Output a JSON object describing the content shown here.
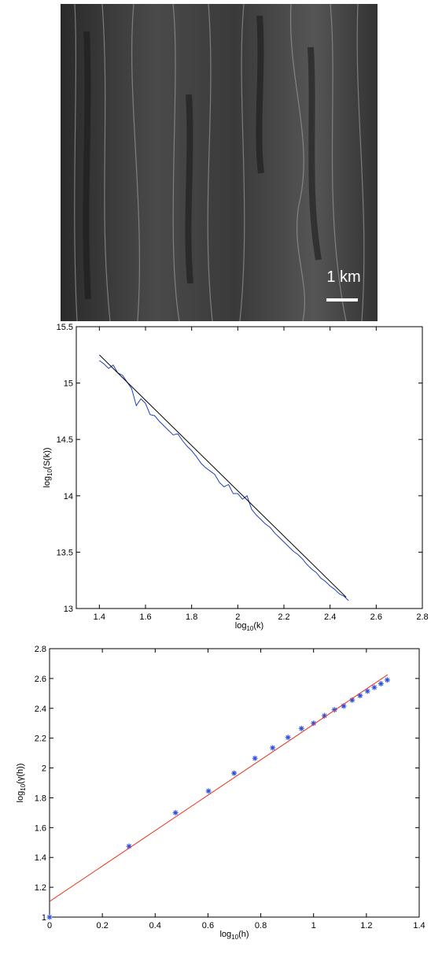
{
  "image": {
    "scale_label": "1 km"
  },
  "chart_data": [
    {
      "type": "line",
      "xlabel": [
        "log",
        "10",
        "(k)"
      ],
      "ylabel": [
        "log",
        "10",
        "(S(k))"
      ],
      "xlim": [
        1.3,
        2.8
      ],
      "xticks": [
        1.4,
        1.6,
        1.8,
        2,
        2.2,
        2.4,
        2.6,
        2.8
      ],
      "ylim": [
        13,
        15.5
      ],
      "yticks": [
        13,
        13.5,
        14,
        14.5,
        15,
        15.5
      ],
      "series": [
        {
          "mode": "lines",
          "color": "#1f3fbf",
          "x": [
            1.4,
            1.42,
            1.44,
            1.46,
            1.48,
            1.5,
            1.52,
            1.54,
            1.56,
            1.58,
            1.6,
            1.62,
            1.64,
            1.66,
            1.68,
            1.7,
            1.72,
            1.74,
            1.76,
            1.78,
            1.8,
            1.82,
            1.84,
            1.86,
            1.88,
            1.9,
            1.92,
            1.94,
            1.96,
            1.98,
            2.0,
            2.02,
            2.04,
            2.06,
            2.08,
            2.1,
            2.12,
            2.14,
            2.16,
            2.18,
            2.2,
            2.22,
            2.24,
            2.26,
            2.28,
            2.3,
            2.32,
            2.34,
            2.36,
            2.38,
            2.4,
            2.42,
            2.44,
            2.46,
            2.48
          ],
          "values": [
            15.2,
            15.17,
            15.13,
            15.16,
            15.09,
            15.07,
            15.01,
            14.95,
            14.8,
            14.86,
            14.82,
            14.72,
            14.71,
            14.66,
            14.62,
            14.58,
            14.54,
            14.55,
            14.49,
            14.44,
            14.4,
            14.35,
            14.29,
            14.25,
            14.22,
            14.19,
            14.12,
            14.08,
            14.1,
            14.02,
            14.02,
            13.97,
            14.0,
            13.88,
            13.83,
            13.79,
            13.75,
            13.72,
            13.67,
            13.63,
            13.59,
            13.55,
            13.51,
            13.48,
            13.44,
            13.39,
            13.35,
            13.32,
            13.27,
            13.24,
            13.2,
            13.17,
            13.13,
            13.11,
            13.07
          ]
        },
        {
          "mode": "lines",
          "color": "#000000",
          "x": [
            1.4,
            2.47
          ],
          "values": [
            15.25,
            13.1
          ]
        }
      ]
    },
    {
      "type": "scatter",
      "xlabel": [
        "log",
        "10",
        "(h)"
      ],
      "ylabel": [
        "log",
        "10",
        "(γ(h))"
      ],
      "xlim": [
        0,
        1.4
      ],
      "xticks": [
        0,
        0.2,
        0.4,
        0.6,
        0.8,
        1,
        1.2,
        1.4
      ],
      "ylim": [
        1,
        2.8
      ],
      "yticks": [
        1,
        1.2,
        1.4,
        1.6,
        1.8,
        2,
        2.2,
        2.4,
        2.6,
        2.8
      ],
      "series": [
        {
          "mode": "markers",
          "color": "#2a4fe0",
          "x": [
            0,
            0.301,
            0.477,
            0.602,
            0.699,
            0.778,
            0.845,
            0.903,
            0.954,
            1.0,
            1.041,
            1.079,
            1.114,
            1.146,
            1.176,
            1.204,
            1.23,
            1.255,
            1.279
          ],
          "values": [
            1.0,
            1.475,
            1.7,
            1.845,
            1.965,
            2.065,
            2.135,
            2.205,
            2.265,
            2.3,
            2.35,
            2.39,
            2.415,
            2.455,
            2.485,
            2.515,
            2.54,
            2.565,
            2.59
          ]
        },
        {
          "mode": "lines",
          "color": "#e8321e",
          "x": [
            0,
            1.28
          ],
          "values": [
            1.105,
            2.625
          ]
        }
      ]
    }
  ]
}
